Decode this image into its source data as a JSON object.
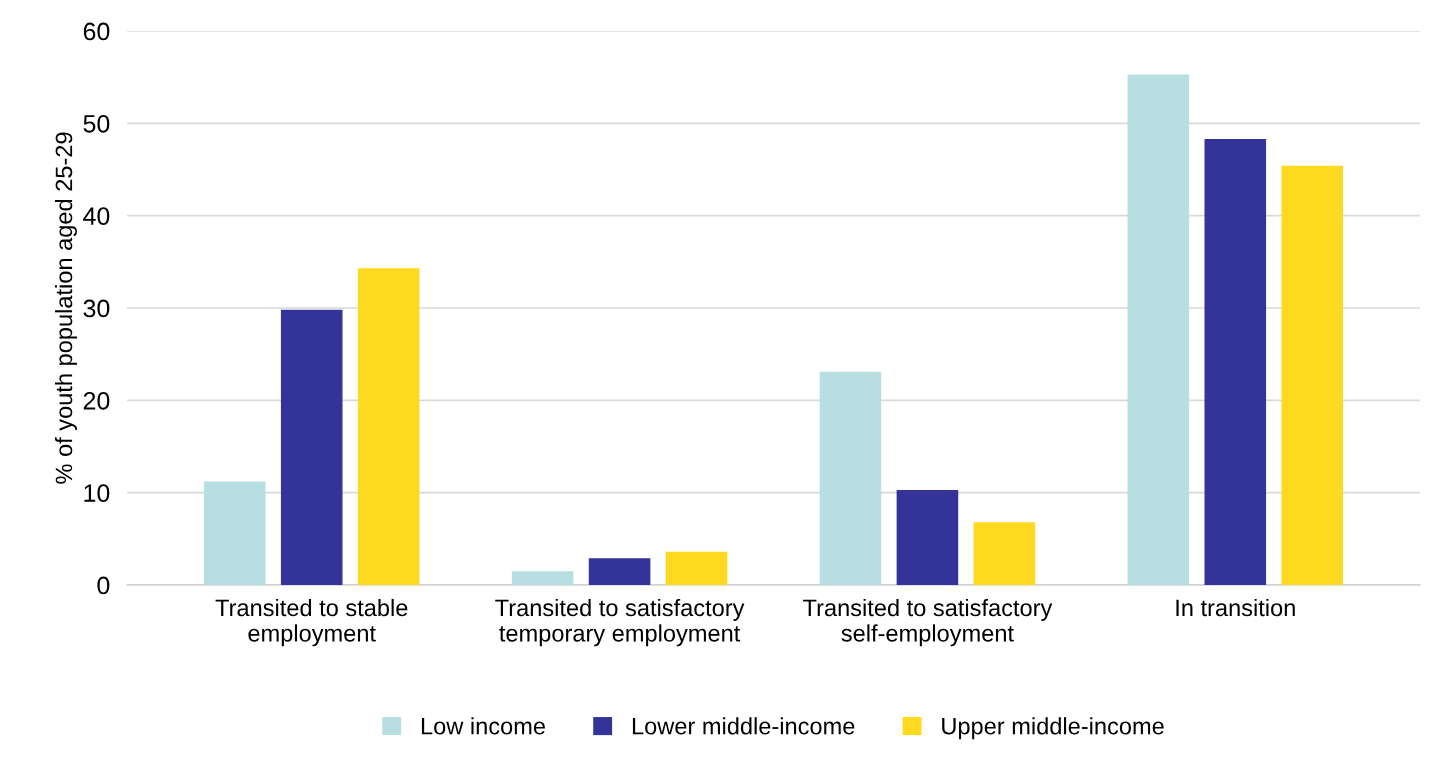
{
  "chart_data": {
    "type": "bar",
    "ylabel": "% of youth population aged 25-29",
    "categories": [
      "Transited to stable\nemployment",
      "Transited to satisfactory\ntemporary employment",
      "Transited to satisfactory\nself-employment",
      "In transition"
    ],
    "series": [
      {
        "name": "Low income",
        "color": "#b7dfe1",
        "values": [
          11.2,
          1.5,
          23.1,
          55.3
        ]
      },
      {
        "name": "Lower middle-income",
        "color": "#333399",
        "values": [
          29.8,
          2.9,
          10.3,
          48.3
        ]
      },
      {
        "name": "Upper middle-income",
        "color": "#ffd91f",
        "values": [
          34.3,
          3.6,
          6.8,
          45.4
        ]
      }
    ],
    "ylim": [
      0,
      60
    ],
    "yticks": [
      0,
      10,
      20,
      30,
      40,
      50,
      60
    ],
    "grid": "y",
    "legend": "bottom"
  }
}
